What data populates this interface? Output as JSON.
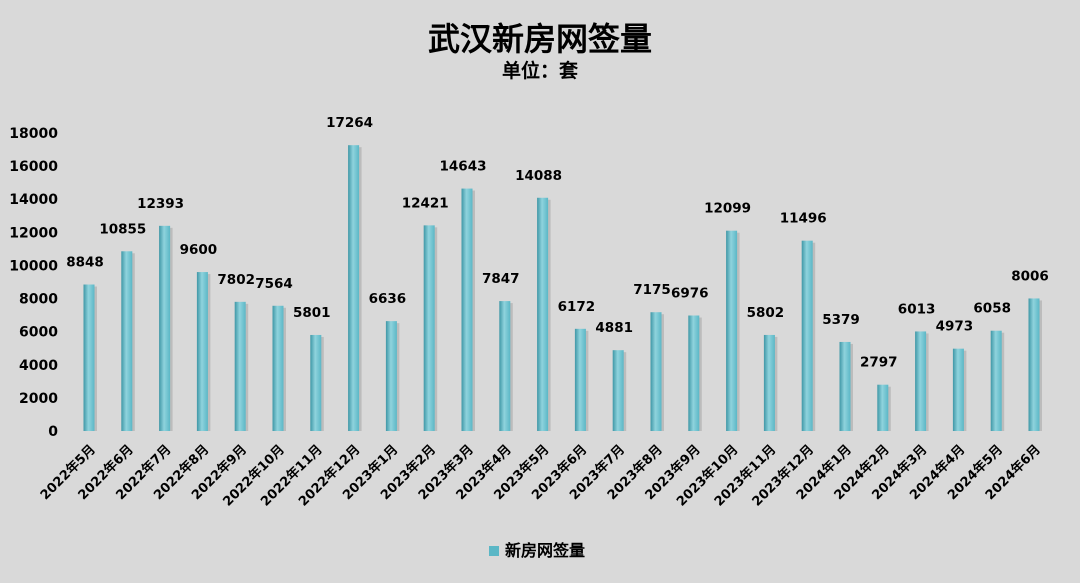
{
  "chart_data": {
    "type": "bar",
    "title": "武汉新房网签量",
    "subtitle": "单位：套",
    "categories": [
      "2022年5月",
      "2022年6月",
      "2022年7月",
      "2022年8月",
      "2022年9月",
      "2022年10月",
      "2022年11月",
      "2022年12月",
      "2023年1月",
      "2023年2月",
      "2023年3月",
      "2023年4月",
      "2023年5月",
      "2023年6月",
      "2023年7月",
      "2023年8月",
      "2023年9月",
      "2023年10月",
      "2023年11月",
      "2023年12月",
      "2024年1月",
      "2024年2月",
      "2024年3月",
      "2024年4月",
      "2024年5月",
      "2024年6月"
    ],
    "series": [
      {
        "name": "新房网签量",
        "values": [
          8848,
          10855,
          12393,
          9600,
          7802,
          7564,
          5801,
          17264,
          6636,
          12421,
          14643,
          7847,
          14088,
          6172,
          4881,
          7175,
          6976,
          12099,
          5802,
          11496,
          5379,
          2797,
          6013,
          4973,
          6058,
          8006
        ]
      }
    ],
    "ylim": [
      0,
      18000
    ],
    "yticks": [
      0,
      2000,
      4000,
      6000,
      8000,
      10000,
      12000,
      14000,
      16000,
      18000
    ],
    "grid": false,
    "legend": "bottom",
    "colors": {
      "bar": "#5bb7c6",
      "bar_dark": "#3f97a6",
      "bar_light": "#8fd3dd"
    }
  }
}
